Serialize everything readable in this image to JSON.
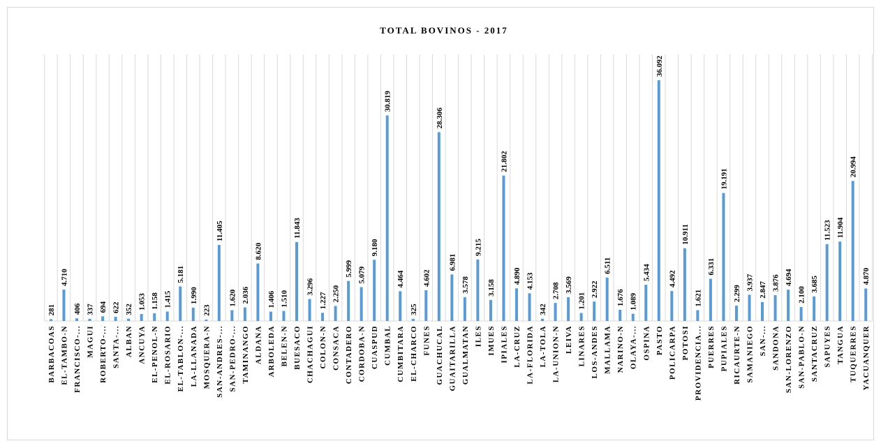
{
  "chart_data": {
    "type": "bar",
    "title": "TOTAL BOVINOS - 2017",
    "categories": [
      "BARBACOAS",
      "EL-TAMBO-N",
      "FRANCISCO-...",
      "MAGUI",
      "ROBERTO-...",
      "SANTA-...",
      "ALBAN",
      "ANCUYA",
      "EL-PENOL-N",
      "EL-ROSARIO",
      "EL-TABLON-...",
      "LA-LLANADA",
      "MOSQUERA-N",
      "SAN-ANDRES-...",
      "SAN-PEDRO-...",
      "TAMINANGO",
      "ALDANA",
      "ARBOLEDA",
      "BELEN-N",
      "BUESACO",
      "CHACHAGUI",
      "COLON-N",
      "CONSACA",
      "CONTADERO",
      "CORDOBA-N",
      "CUASPUD",
      "CUMBAL",
      "CUMBITARA",
      "EL-CHARCO",
      "FUNES",
      "GUACHUCAL",
      "GUAITARILLA",
      "GUALMATAN",
      "ILES",
      "IMUES",
      "IPIALES",
      "LA-CRUZ",
      "LA-FLORIDA",
      "LA-TOLA",
      "LA-UNION-N",
      "LEIVA",
      "LINARES",
      "LOS-ANDES",
      "MALLAMA",
      "NARINO-N",
      "OLAYA-...",
      "OSPINA",
      "PASTO",
      "POLICARPA",
      "POTOSI",
      "PROVIDENCIA...",
      "PUERRES",
      "PUPIALES",
      "RICAURTE-N",
      "SAMANIEGO",
      "SAN-...",
      "SANDONA",
      "SAN-LORENZO",
      "SAN-PABLO-N",
      "SANTACRUZ",
      "SAPUYES",
      "TANGUA",
      "TUQUERRES",
      "YACUANQUER"
    ],
    "values": [
      281,
      4710,
      406,
      337,
      694,
      622,
      352,
      1053,
      1158,
      1415,
      5181,
      1990,
      223,
      11405,
      1620,
      2036,
      8620,
      1406,
      1510,
      11843,
      3296,
      1227,
      2250,
      5999,
      5079,
      9180,
      30819,
      4464,
      325,
      4602,
      28306,
      6981,
      3578,
      9215,
      3158,
      21802,
      4890,
      4153,
      342,
      2708,
      3569,
      1201,
      2922,
      6511,
      1676,
      1089,
      5434,
      36092,
      4492,
      10911,
      1621,
      6331,
      19191,
      2299,
      3937,
      2847,
      3876,
      4694,
      2100,
      3685,
      11523,
      11904,
      20994,
      4870
    ],
    "value_labels": [
      "281",
      "4.710",
      "406",
      "337",
      "694",
      "622",
      "352",
      "1.053",
      "1.158",
      "1.415",
      "5.181",
      "1.990",
      "223",
      "11.405",
      "1.620",
      "2.036",
      "8.620",
      "1.406",
      "1.510",
      "11.843",
      "3.296",
      "1.227",
      "2.250",
      "5.999",
      "5.079",
      "9.180",
      "30.819",
      "4.464",
      "325",
      "4.602",
      "28.306",
      "6.981",
      "3.578",
      "9.215",
      "3.158",
      "21.802",
      "4.890",
      "4.153",
      "342",
      "2.708",
      "3.569",
      "1.201",
      "2.922",
      "6.511",
      "1.676",
      "1.089",
      "5.434",
      "36.092",
      "4.492",
      "10.911",
      "1.621",
      "6.331",
      "19.191",
      "2.299",
      "3.937",
      "2.847",
      "3.876",
      "4.694",
      "2.100",
      "3.685",
      "11.523",
      "11.904",
      "20.994",
      "4.870"
    ],
    "color": "#5b9bd5",
    "grid": true
  }
}
